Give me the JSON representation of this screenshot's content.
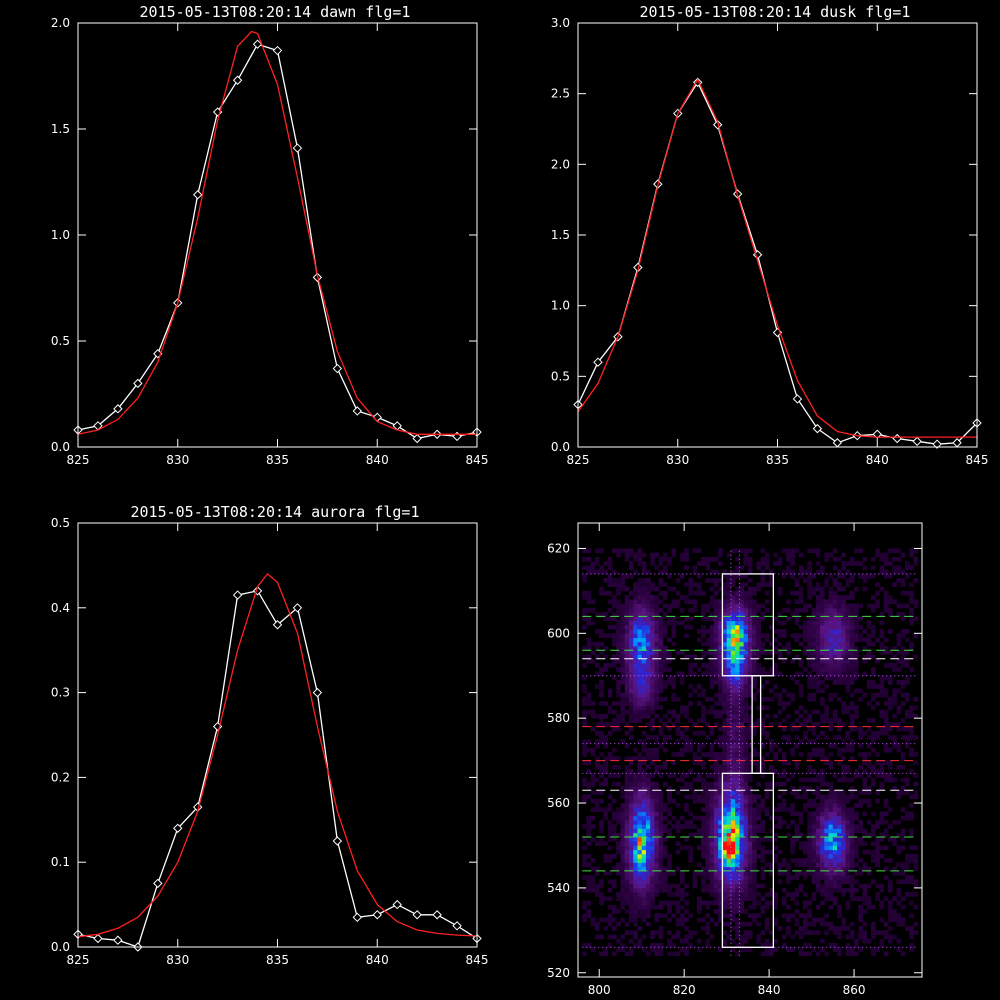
{
  "chart_data": [
    {
      "id": "dawn",
      "type": "line",
      "title": "2015-05-13T08:20:14 dawn flg=1",
      "xlim": [
        825,
        845
      ],
      "ylim": [
        0,
        2.0
      ],
      "xticks": [
        "825",
        "830",
        "835",
        "840",
        "845"
      ],
      "yticks": [
        "0.0",
        "0.5",
        "1.0",
        "1.5",
        "2.0"
      ],
      "series": [
        {
          "color": "#ffffff",
          "markers": "diamond",
          "x": [
            825,
            826,
            827,
            828,
            829,
            830,
            831,
            832,
            833,
            834,
            835,
            836,
            837,
            838,
            839,
            840,
            841,
            842,
            843,
            844,
            845
          ],
          "y": [
            0.08,
            0.1,
            0.18,
            0.3,
            0.44,
            0.68,
            1.19,
            1.58,
            1.73,
            1.9,
            1.87,
            1.41,
            0.8,
            0.37,
            0.17,
            0.14,
            0.1,
            0.04,
            0.06,
            0.05,
            0.07
          ]
        },
        {
          "color": "#ff2020",
          "markers": "none",
          "x": [
            825,
            826,
            827,
            828,
            829,
            830,
            831,
            832,
            833,
            833.7,
            834,
            835,
            836,
            837,
            838,
            839,
            840,
            841,
            842,
            843,
            844,
            845
          ],
          "y": [
            0.06,
            0.08,
            0.13,
            0.23,
            0.4,
            0.68,
            1.08,
            1.54,
            1.89,
            1.96,
            1.95,
            1.71,
            1.27,
            0.81,
            0.45,
            0.23,
            0.12,
            0.08,
            0.06,
            0.06,
            0.06,
            0.06
          ]
        }
      ]
    },
    {
      "id": "dusk",
      "type": "line",
      "title": "2015-05-13T08:20:14 dusk flg=1",
      "xlim": [
        825,
        845
      ],
      "ylim": [
        0,
        3.0
      ],
      "xticks": [
        "825",
        "830",
        "835",
        "840",
        "845"
      ],
      "yticks": [
        "0.0",
        "0.5",
        "1.0",
        "1.5",
        "2.0",
        "2.5",
        "3.0"
      ],
      "series": [
        {
          "color": "#ffffff",
          "markers": "diamond",
          "x": [
            825,
            826,
            827,
            828,
            829,
            830,
            831,
            832,
            833,
            834,
            835,
            836,
            837,
            838,
            839,
            840,
            841,
            842,
            843,
            844,
            845
          ],
          "y": [
            0.3,
            0.6,
            0.78,
            1.27,
            1.86,
            2.36,
            2.58,
            2.28,
            1.79,
            1.36,
            0.81,
            0.34,
            0.13,
            0.03,
            0.08,
            0.09,
            0.06,
            0.04,
            0.02,
            0.03,
            0.17
          ]
        },
        {
          "color": "#ff2020",
          "markers": "none",
          "x": [
            825,
            826,
            827,
            828,
            829,
            830,
            831,
            832,
            833,
            834,
            835,
            836,
            837,
            838,
            839,
            840,
            841,
            842,
            843,
            844,
            845
          ],
          "y": [
            0.25,
            0.45,
            0.78,
            1.25,
            1.85,
            2.36,
            2.6,
            2.3,
            1.78,
            1.32,
            0.86,
            0.47,
            0.22,
            0.11,
            0.08,
            0.07,
            0.07,
            0.07,
            0.07,
            0.07,
            0.07
          ]
        }
      ]
    },
    {
      "id": "aurora",
      "type": "line",
      "title": "2015-05-13T08:20:14 aurora flg=1",
      "xlim": [
        825,
        845
      ],
      "ylim": [
        0,
        0.5
      ],
      "xticks": [
        "825",
        "830",
        "835",
        "840",
        "845"
      ],
      "yticks": [
        "0.0",
        "0.1",
        "0.2",
        "0.3",
        "0.4",
        "0.5"
      ],
      "series": [
        {
          "color": "#ffffff",
          "markers": "diamond",
          "x": [
            825,
            826,
            827,
            828,
            829,
            830,
            831,
            832,
            833,
            834,
            835,
            836,
            837,
            838,
            839,
            840,
            841,
            842,
            843,
            844,
            845
          ],
          "y": [
            0.015,
            0.01,
            0.008,
            0.0,
            0.075,
            0.14,
            0.165,
            0.26,
            0.415,
            0.42,
            0.38,
            0.4,
            0.3,
            0.125,
            0.035,
            0.038,
            0.05,
            0.038,
            0.038,
            0.025,
            0.01
          ]
        },
        {
          "color": "#ff2020",
          "markers": "none",
          "x": [
            825,
            826,
            827,
            828,
            829,
            830,
            831,
            832,
            833,
            834,
            834.5,
            835,
            836,
            837,
            838,
            839,
            840,
            841,
            842,
            843,
            844,
            845
          ],
          "y": [
            0.012,
            0.015,
            0.022,
            0.035,
            0.06,
            0.1,
            0.16,
            0.25,
            0.35,
            0.425,
            0.44,
            0.43,
            0.37,
            0.26,
            0.16,
            0.09,
            0.05,
            0.03,
            0.02,
            0.016,
            0.014,
            0.013
          ]
        }
      ]
    },
    {
      "id": "heatmap",
      "type": "heatmap",
      "title": "",
      "xlim": [
        795,
        876
      ],
      "ylim": [
        519,
        626
      ],
      "xticks": [
        "800",
        "820",
        "840",
        "860"
      ],
      "yticks": [
        "520",
        "540",
        "560",
        "580",
        "600",
        "620"
      ],
      "xticks_values": [
        800,
        820,
        840,
        860
      ],
      "yticks_values": [
        520,
        540,
        560,
        580,
        600,
        620
      ],
      "extent": {
        "x": [
          796,
          875
        ],
        "y": [
          524,
          620
        ]
      },
      "blobs": [
        {
          "x": 810,
          "y": 598,
          "sx": 2.2,
          "sy": 5.0,
          "amp": 0.5
        },
        {
          "x": 810,
          "y": 588,
          "sx": 2.0,
          "sy": 3.5,
          "amp": 0.25
        },
        {
          "x": 832,
          "y": 599,
          "sx": 2.2,
          "sy": 4.5,
          "amp": 0.72
        },
        {
          "x": 832,
          "y": 591,
          "sx": 1.8,
          "sy": 3.0,
          "amp": 0.3
        },
        {
          "x": 855,
          "y": 599,
          "sx": 2.5,
          "sy": 4.5,
          "amp": 0.3
        },
        {
          "x": 810,
          "y": 551,
          "sx": 2.0,
          "sy": 6.5,
          "amp": 0.72
        },
        {
          "x": 831,
          "y": 552,
          "sx": 2.4,
          "sy": 7.0,
          "amp": 0.75
        },
        {
          "x": 830.5,
          "y": 549,
          "sx": 1.2,
          "sy": 1.6,
          "amp": 0.45
        },
        {
          "x": 855,
          "y": 551,
          "sx": 2.2,
          "sy": 4.5,
          "amp": 0.55
        },
        {
          "x": 832,
          "y": 575,
          "sx": 1.6,
          "sy": 12.0,
          "amp": 0.1
        }
      ],
      "rectangles": [
        {
          "x0": 829,
          "x1": 841,
          "y0": 590,
          "y1": 614,
          "color": "#ffffff"
        },
        {
          "x0": 836,
          "x1": 838,
          "y0": 567,
          "y1": 590,
          "color": "#ffffff"
        },
        {
          "x0": 829,
          "x1": 841,
          "y0": 526,
          "y1": 567,
          "color": "#ffffff"
        }
      ],
      "hlines": [
        {
          "y": 614,
          "color": "#c060ff",
          "style": "dotted"
        },
        {
          "y": 604,
          "color": "#40e040",
          "style": "dashed"
        },
        {
          "y": 596,
          "color": "#40e040",
          "style": "dashed"
        },
        {
          "y": 594,
          "color": "#ffffff",
          "style": "dashed"
        },
        {
          "y": 590,
          "color": "#c060ff",
          "style": "dotted"
        },
        {
          "y": 578,
          "color": "#ff3030",
          "style": "dashed"
        },
        {
          "y": 574,
          "color": "#c060ff",
          "style": "dotted"
        },
        {
          "y": 570,
          "color": "#ff3030",
          "style": "dashed"
        },
        {
          "y": 567,
          "color": "#c060ff",
          "style": "dotted"
        },
        {
          "y": 563,
          "color": "#ffffff",
          "style": "dashed"
        },
        {
          "y": 552,
          "color": "#40e040",
          "style": "dashed"
        },
        {
          "y": 544,
          "color": "#40e040",
          "style": "dashed"
        },
        {
          "y": 526,
          "color": "#c060ff",
          "style": "dotted"
        }
      ],
      "vlines": [
        {
          "x": 831,
          "color": "#c060ff",
          "style": "dotted"
        },
        {
          "x": 833,
          "color": "#c060ff",
          "style": "dotted"
        }
      ]
    }
  ]
}
